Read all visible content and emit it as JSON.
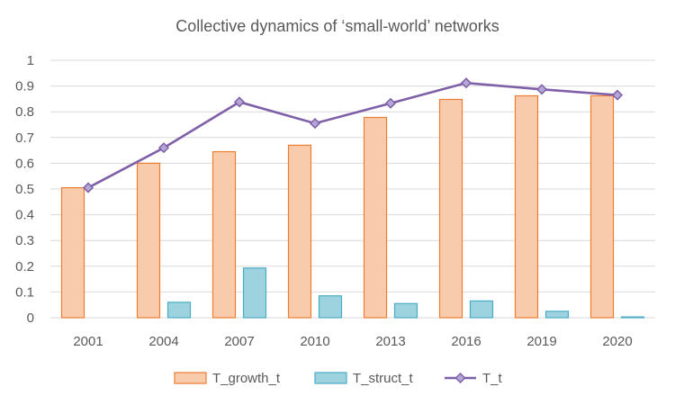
{
  "chart_data": {
    "type": "bar",
    "title": "Collective dynamics of ‘small-world’ networks",
    "xlabel": "",
    "ylabel": "",
    "categories": [
      "2001",
      "2004",
      "2007",
      "2010",
      "2013",
      "2016",
      "2019",
      "2020"
    ],
    "ylim": [
      0,
      1
    ],
    "yticks": [
      "0",
      "0.1",
      "0.2",
      "0.3",
      "0.4",
      "0.5",
      "0.6",
      "0.7",
      "0.8",
      "0.9",
      "1"
    ],
    "grid": true,
    "legend_position": "bottom",
    "series": [
      {
        "name": "T_growth_t",
        "kind": "bar",
        "fill": "#f8cbad",
        "stroke": "#ed7d31",
        "values": [
          0.505,
          0.6,
          0.645,
          0.67,
          0.778,
          0.848,
          0.862,
          0.862
        ]
      },
      {
        "name": "T_struct_t",
        "kind": "bar",
        "fill": "#9dd3df",
        "stroke": "#4bacc6",
        "values": [
          0.0,
          0.06,
          0.193,
          0.085,
          0.055,
          0.065,
          0.025,
          0.003
        ]
      },
      {
        "name": "T_t",
        "kind": "line",
        "stroke": "#7e5fa8",
        "marker_fill": "#b4a7d6",
        "values": [
          0.505,
          0.66,
          0.838,
          0.755,
          0.833,
          0.912,
          0.887,
          0.865
        ]
      }
    ]
  }
}
